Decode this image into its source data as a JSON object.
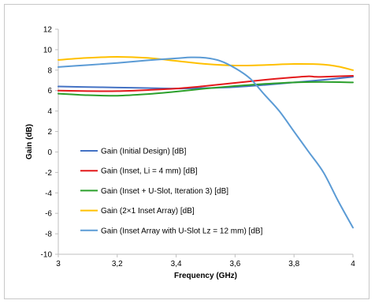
{
  "chart_data": {
    "type": "line",
    "title": "",
    "xlabel": "Frequency (GHz)",
    "ylabel": "Gain (dB)",
    "xlim": [
      3,
      4
    ],
    "ylim": [
      -10,
      12
    ],
    "xticks": [
      3,
      3.2,
      3.4,
      3.6,
      3.8,
      4
    ],
    "xtick_labels": [
      "3",
      "3,2",
      "3,4",
      "3,6",
      "3,8",
      "4"
    ],
    "yticks": [
      -10,
      -8,
      -6,
      -4,
      -2,
      0,
      2,
      4,
      6,
      8,
      10,
      12
    ],
    "ytick_labels": [
      "-10",
      "-8",
      "-6",
      "-4",
      "-2",
      "0",
      "2",
      "4",
      "6",
      "8",
      "10",
      "12"
    ],
    "grid": false,
    "legend_position": "inside-left",
    "series": [
      {
        "name": "Gain (Initial Design) [dB]",
        "color": "#4472C4",
        "x": [
          3.0,
          3.1,
          3.2,
          3.3,
          3.4,
          3.5,
          3.6,
          3.7,
          3.8,
          3.9,
          4.0
        ],
        "y": [
          6.4,
          6.35,
          6.3,
          6.25,
          6.2,
          6.25,
          6.35,
          6.55,
          6.8,
          7.05,
          7.35
        ]
      },
      {
        "name": "Gain (Inset, Li = 4 mm) [dB]",
        "color": "#E31A1C",
        "x": [
          3.0,
          3.1,
          3.2,
          3.3,
          3.4,
          3.5,
          3.6,
          3.7,
          3.8,
          3.85,
          3.87,
          3.9,
          4.0
        ],
        "y": [
          6.0,
          5.95,
          5.95,
          6.05,
          6.2,
          6.45,
          6.75,
          7.05,
          7.3,
          7.4,
          7.35,
          7.35,
          7.45
        ]
      },
      {
        "name": "Gain (Inset + U-Slot, Iteration 3) [dB]",
        "color": "#2CA02C",
        "x": [
          3.0,
          3.1,
          3.2,
          3.3,
          3.4,
          3.5,
          3.6,
          3.7,
          3.8,
          3.9,
          4.0
        ],
        "y": [
          5.7,
          5.55,
          5.5,
          5.65,
          5.9,
          6.2,
          6.45,
          6.65,
          6.8,
          6.85,
          6.8
        ]
      },
      {
        "name": "Gain (2×1 Inset Array) [dB]",
        "color": "#FFC000",
        "x": [
          3.0,
          3.1,
          3.2,
          3.3,
          3.4,
          3.5,
          3.6,
          3.7,
          3.8,
          3.9,
          3.95,
          4.0
        ],
        "y": [
          9.0,
          9.2,
          9.3,
          9.2,
          8.9,
          8.6,
          8.45,
          8.5,
          8.6,
          8.55,
          8.35,
          8.0
        ]
      },
      {
        "name": "Gain (Inset Array with U-Slot Lz = 12 mm) [dB]",
        "color": "#5B9BD5",
        "x": [
          3.0,
          3.1,
          3.2,
          3.3,
          3.4,
          3.45,
          3.5,
          3.55,
          3.6,
          3.65,
          3.7,
          3.75,
          3.8,
          3.85,
          3.9,
          3.95,
          4.0
        ],
        "y": [
          8.3,
          8.5,
          8.7,
          8.95,
          9.15,
          9.25,
          9.2,
          8.9,
          8.2,
          7.2,
          5.6,
          4.0,
          2.0,
          0.0,
          -2.0,
          -4.8,
          -7.4
        ]
      }
    ]
  }
}
